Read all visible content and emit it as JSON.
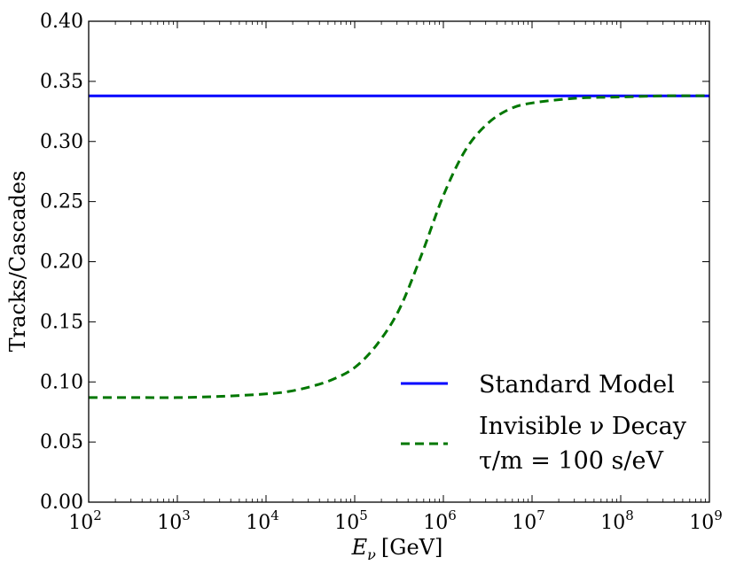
{
  "chart_data": {
    "type": "line",
    "title": "",
    "xlabel": "E_ν [GeV]",
    "xlabel_parts": {
      "symbol": "E",
      "subscript": "ν",
      "unit": "[GeV]"
    },
    "ylabel": "Tracks/Cascades",
    "xscale": "log",
    "xlim_log10": [
      2,
      9
    ],
    "ylim": [
      0.0,
      0.4
    ],
    "x_ticks": [
      {
        "base": "10",
        "exp": "2"
      },
      {
        "base": "10",
        "exp": "3"
      },
      {
        "base": "10",
        "exp": "4"
      },
      {
        "base": "10",
        "exp": "5"
      },
      {
        "base": "10",
        "exp": "6"
      },
      {
        "base": "10",
        "exp": "7"
      },
      {
        "base": "10",
        "exp": "8"
      },
      {
        "base": "10",
        "exp": "9"
      }
    ],
    "y_ticks": [
      "0.00",
      "0.05",
      "0.10",
      "0.15",
      "0.20",
      "0.25",
      "0.30",
      "0.35",
      "0.40"
    ],
    "legend_position": "lower-right",
    "series": [
      {
        "name": "Standard Model",
        "color": "#0000ff",
        "style": "solid",
        "x_log10": [
          2,
          9
        ],
        "y": [
          0.338,
          0.338
        ]
      },
      {
        "name": "Invisible ν Decay",
        "name2": "τ/m = 100 s/eV",
        "color": "#007700",
        "style": "dashed",
        "x_log10": [
          2.0,
          2.5,
          3.0,
          3.5,
          4.0,
          4.25,
          4.5,
          4.75,
          5.0,
          5.25,
          5.5,
          5.75,
          6.0,
          6.25,
          6.5,
          6.75,
          7.0,
          7.5,
          8.0,
          8.5,
          9.0
        ],
        "y": [
          0.087,
          0.087,
          0.087,
          0.088,
          0.09,
          0.092,
          0.096,
          0.102,
          0.112,
          0.131,
          0.16,
          0.205,
          0.255,
          0.293,
          0.315,
          0.327,
          0.332,
          0.336,
          0.337,
          0.338,
          0.338
        ]
      }
    ]
  }
}
